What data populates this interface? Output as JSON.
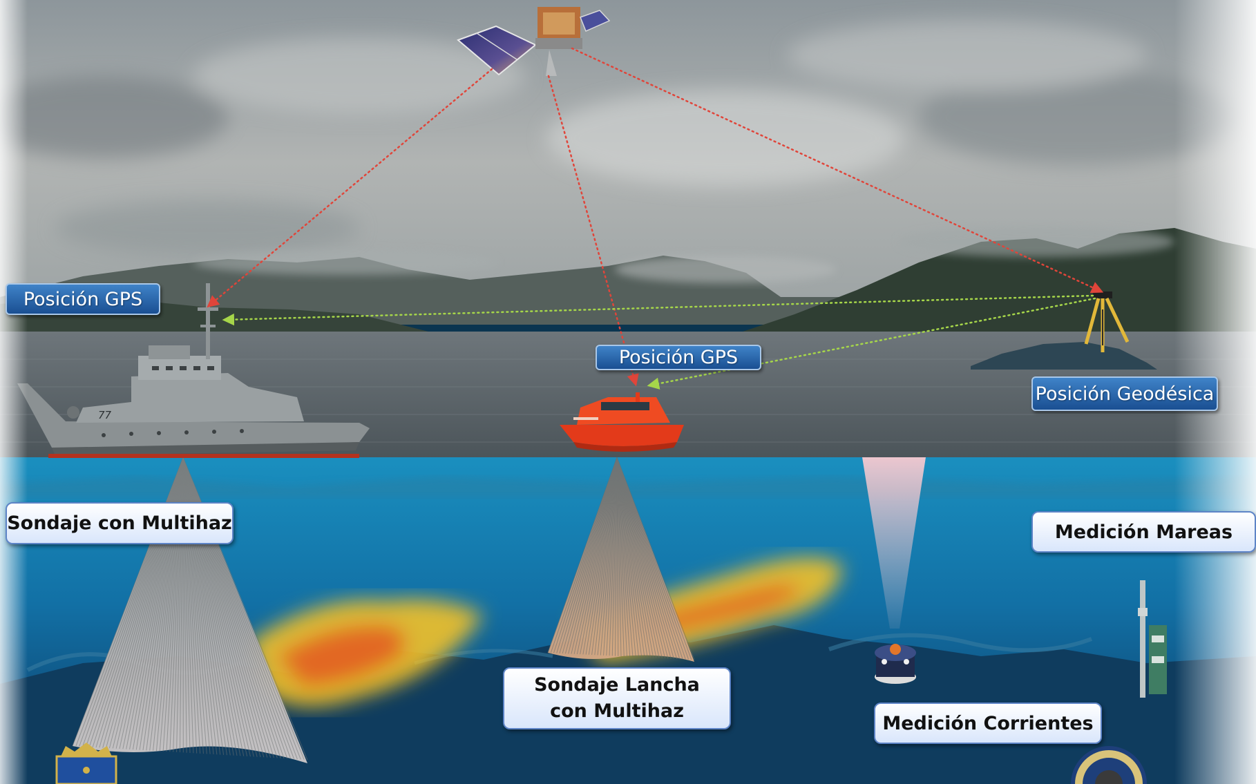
{
  "labels": {
    "gps_ship": "Posición GPS",
    "gps_launch": "Posición GPS",
    "geodetic": "Posición Geodésica",
    "multibeam_ship": "Sondaje con Multihaz",
    "multibeam_launch_line1": "Sondaje Lancha",
    "multibeam_launch_line2": "con Multihaz",
    "tides": "Medición Mareas",
    "currents": "Medición Corrientes"
  },
  "vessel": {
    "hull_number": "77"
  },
  "colors": {
    "gps_link": "#e0453a",
    "geodetic_link": "#a6d64a",
    "label_blue": "#2c66ad",
    "label_white": "#ffffff"
  }
}
